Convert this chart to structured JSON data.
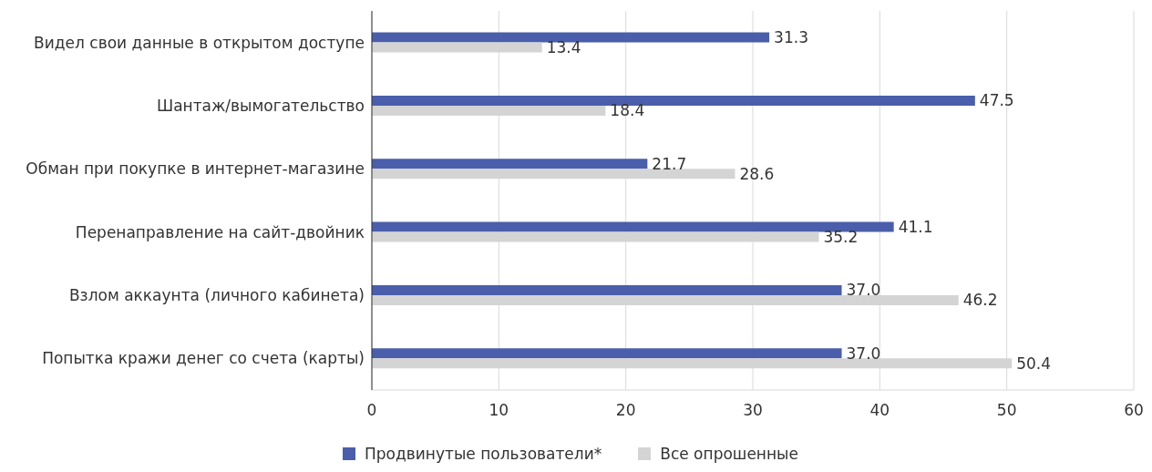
{
  "chart_data": {
    "type": "bar",
    "orientation": "horizontal",
    "categories": [
      "Видел свои данные в открытом доступе",
      "Шантаж/вымогательство",
      "Обман при покупке в интернет-магазине",
      "Перенаправление на сайт-двойник",
      "Взлом аккаунта (личного кабинета)",
      "Попытка кражи денег со счета (карты)"
    ],
    "series": [
      {
        "name": "Продвинутые пользователи*",
        "color": "#4a5eab",
        "values": [
          31.3,
          47.5,
          21.7,
          41.1,
          37.0,
          37.0
        ],
        "value_labels": [
          "31.3",
          "47.5",
          "21.7",
          "41.1",
          "37.0",
          "37.0"
        ]
      },
      {
        "name": "Все опрошенные",
        "color": "#d4d4d5",
        "values": [
          13.4,
          18.4,
          28.6,
          35.2,
          46.2,
          50.4
        ],
        "value_labels": [
          "13.4",
          "18.4",
          "28.6",
          "35.2",
          "46.2",
          "50.4"
        ]
      }
    ],
    "xlim": [
      0,
      60
    ],
    "xticks": [
      0,
      10,
      20,
      30,
      40,
      50,
      60
    ],
    "grid": "x",
    "legend": "bottom"
  }
}
